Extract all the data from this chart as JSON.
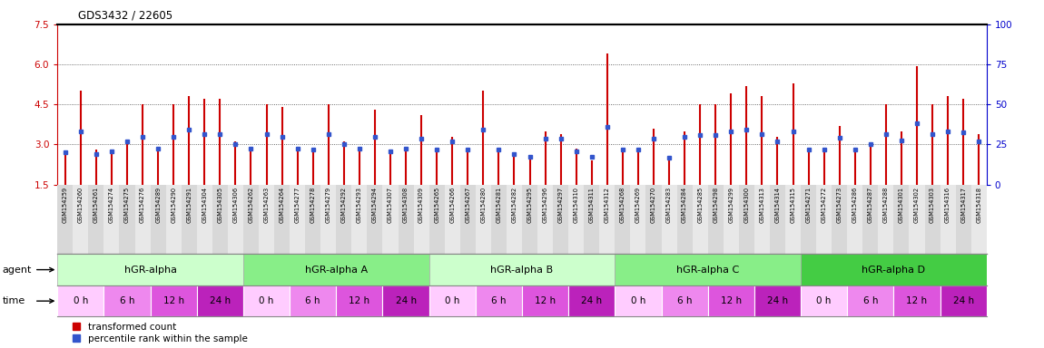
{
  "title": "GDS3432 / 22605",
  "ylim_left": [
    1.5,
    7.5
  ],
  "ylim_right": [
    0,
    100
  ],
  "yticks_left": [
    1.5,
    3.0,
    4.5,
    6.0,
    7.5
  ],
  "yticks_right": [
    0,
    25,
    50,
    75,
    100
  ],
  "bar_color": "#cc0000",
  "dot_color": "#3355cc",
  "samples": [
    "GSM154259",
    "GSM154260",
    "GSM154261",
    "GSM154274",
    "GSM154275",
    "GSM154276",
    "GSM154289",
    "GSM154290",
    "GSM154291",
    "GSM154304",
    "GSM154305",
    "GSM154306",
    "GSM154262",
    "GSM154263",
    "GSM154264",
    "GSM154277",
    "GSM154278",
    "GSM154279",
    "GSM154292",
    "GSM154293",
    "GSM154294",
    "GSM154307",
    "GSM154308",
    "GSM154309",
    "GSM154265",
    "GSM154266",
    "GSM154267",
    "GSM154280",
    "GSM154281",
    "GSM154282",
    "GSM154295",
    "GSM154296",
    "GSM154297",
    "GSM154310",
    "GSM154311",
    "GSM154312",
    "GSM154268",
    "GSM154269",
    "GSM154270",
    "GSM154283",
    "GSM154284",
    "GSM154285",
    "GSM154298",
    "GSM154299",
    "GSM154300",
    "GSM154313",
    "GSM154314",
    "GSM154315",
    "GSM154271",
    "GSM154272",
    "GSM154273",
    "GSM154286",
    "GSM154287",
    "GSM154288",
    "GSM154301",
    "GSM154302",
    "GSM154303",
    "GSM154316",
    "GSM154317",
    "GSM154318"
  ],
  "bar_heights": [
    2.7,
    5.0,
    2.8,
    2.8,
    3.1,
    4.5,
    2.85,
    4.5,
    4.8,
    4.7,
    4.7,
    3.1,
    2.85,
    4.5,
    4.4,
    2.85,
    2.85,
    4.5,
    3.1,
    2.85,
    4.3,
    2.8,
    2.85,
    4.1,
    2.85,
    3.3,
    2.85,
    5.0,
    2.85,
    2.7,
    2.5,
    3.5,
    3.4,
    2.85,
    2.4,
    6.4,
    2.85,
    2.85,
    3.6,
    2.5,
    3.5,
    4.5,
    4.5,
    4.9,
    5.2,
    4.8,
    3.3,
    5.3,
    2.85,
    2.85,
    3.7,
    2.85,
    3.0,
    4.5,
    3.5,
    5.95,
    4.5,
    4.8,
    4.7,
    3.4
  ],
  "dot_heights": [
    2.7,
    3.5,
    2.65,
    2.75,
    3.1,
    3.3,
    2.85,
    3.3,
    3.55,
    3.4,
    3.4,
    3.0,
    2.85,
    3.4,
    3.3,
    2.85,
    2.8,
    3.4,
    3.0,
    2.85,
    3.3,
    2.75,
    2.85,
    3.2,
    2.8,
    3.1,
    2.8,
    3.55,
    2.8,
    2.65,
    2.55,
    3.2,
    3.2,
    2.75,
    2.55,
    3.65,
    2.8,
    2.8,
    3.2,
    2.5,
    3.3,
    3.35,
    3.35,
    3.5,
    3.55,
    3.4,
    3.1,
    3.5,
    2.8,
    2.8,
    3.25,
    2.8,
    3.0,
    3.4,
    3.15,
    3.8,
    3.4,
    3.5,
    3.45,
    3.1
  ],
  "agents": [
    {
      "label": "hGR-alpha",
      "start": 0,
      "end": 12,
      "color": "#ccffcc"
    },
    {
      "label": "hGR-alpha A",
      "start": 12,
      "end": 24,
      "color": "#88ee88"
    },
    {
      "label": "hGR-alpha B",
      "start": 24,
      "end": 36,
      "color": "#ccffcc"
    },
    {
      "label": "hGR-alpha C",
      "start": 36,
      "end": 48,
      "color": "#88ee88"
    },
    {
      "label": "hGR-alpha D",
      "start": 48,
      "end": 60,
      "color": "#44cc44"
    }
  ],
  "time_colors": [
    "#ffccff",
    "#ee88ee",
    "#dd55dd",
    "#bb22bb"
  ],
  "time_labels": [
    "0 h",
    "6 h",
    "12 h",
    "24 h"
  ],
  "samples_per_time": 3,
  "times_per_agent": 4
}
